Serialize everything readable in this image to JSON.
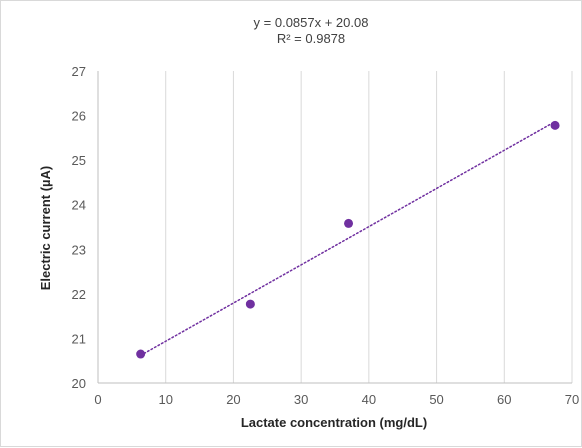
{
  "chart_data": {
    "type": "scatter",
    "title": "",
    "xlabel": "Lactate concentration (mg/dL)",
    "ylabel": "Electric current (µA)",
    "xlim": [
      0,
      70
    ],
    "ylim": [
      20,
      27
    ],
    "xticks": [
      "0",
      "10",
      "20",
      "30",
      "40",
      "50",
      "60",
      "70"
    ],
    "yticks": [
      "20",
      "21",
      "22",
      "23",
      "24",
      "25",
      "26",
      "27"
    ],
    "grid": "vertical",
    "legend": "none",
    "series": [
      {
        "points": [
          {
            "x": 6.3,
            "y": 20.65
          },
          {
            "x": 22.5,
            "y": 21.77
          },
          {
            "x": 37.0,
            "y": 23.58
          },
          {
            "x": 67.5,
            "y": 25.78
          }
        ],
        "color": "#7030a0"
      }
    ],
    "trendline": {
      "type": "linear",
      "style": "dotted",
      "color": "#7030a0",
      "slope": 0.0857,
      "intercept": 20.08,
      "equation_label": "y = 0.0857x + 20.08",
      "r2_label": "R² = 0.9878"
    }
  }
}
